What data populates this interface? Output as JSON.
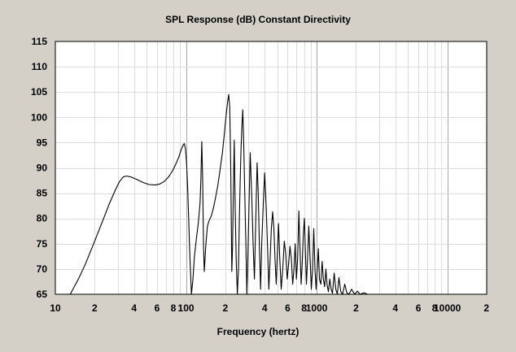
{
  "chart_data": {
    "type": "line",
    "title": "SPL Response (dB)   Constant Directivity",
    "xlabel": "Frequency (hertz)",
    "ylabel": "",
    "xscale": "log",
    "xlim": [
      10,
      20000
    ],
    "ylim": [
      65,
      115
    ],
    "grid": true,
    "x_tick_labels": [
      {
        "value": 10,
        "label": "10"
      },
      {
        "value": 20,
        "label": "2"
      },
      {
        "value": 40,
        "label": "4"
      },
      {
        "value": 60,
        "label": "6"
      },
      {
        "value": 80,
        "label": "8"
      },
      {
        "value": 100,
        "label": "100"
      },
      {
        "value": 200,
        "label": "2"
      },
      {
        "value": 400,
        "label": "4"
      },
      {
        "value": 600,
        "label": "6"
      },
      {
        "value": 800,
        "label": "8"
      },
      {
        "value": 1000,
        "label": "1000"
      },
      {
        "value": 2000,
        "label": "2"
      },
      {
        "value": 4000,
        "label": "4"
      },
      {
        "value": 6000,
        "label": "6"
      },
      {
        "value": 8000,
        "label": "8"
      },
      {
        "value": 10000,
        "label": "10000"
      },
      {
        "value": 20000,
        "label": "2"
      }
    ],
    "y_ticks": [
      65,
      70,
      75,
      80,
      85,
      90,
      95,
      100,
      105,
      110,
      115
    ],
    "line_color": "#000000",
    "series": [
      {
        "x": [
          13,
          15,
          17,
          20,
          23,
          26,
          29,
          31,
          33,
          35,
          38,
          42,
          47,
          52,
          58,
          63,
          68,
          73,
          78,
          83,
          88,
          92,
          95,
          97,
          99,
          101,
          103,
          105,
          107,
          110,
          113,
          116,
          120,
          124,
          128,
          130,
          132,
          134,
          136,
          138,
          142,
          146,
          150,
          156,
          162,
          168,
          175,
          182,
          190,
          197,
          203,
          208,
          212,
          216,
          220,
          224,
          227,
          230,
          234,
          238,
          242,
          247,
          252,
          256,
          260,
          264,
          268,
          272,
          276,
          281,
          287,
          292,
          297,
          303,
          310,
          318,
          326,
          334,
          342,
          350,
          357,
          365,
          372,
          380,
          390,
          400,
          410,
          420,
          430,
          440,
          450,
          460,
          470,
          480,
          490,
          500,
          510,
          520,
          535,
          550,
          565,
          580,
          595,
          610,
          625,
          640,
          655,
          670,
          685,
          700,
          715,
          730,
          745,
          760,
          775,
          790,
          805,
          820,
          835,
          850,
          870,
          890,
          910,
          930,
          950,
          970,
          990,
          1010,
          1030,
          1050,
          1075,
          1100,
          1125,
          1150,
          1175,
          1200,
          1230,
          1260,
          1290,
          1320,
          1360,
          1400,
          1440,
          1480,
          1530,
          1580,
          1640,
          1700,
          1770,
          1850,
          1950,
          2050,
          2150,
          2300,
          2450
        ],
        "y": [
          65,
          68,
          71,
          75.5,
          79.5,
          83,
          85.8,
          87.3,
          88.2,
          88.4,
          88.2,
          87.7,
          87.1,
          86.7,
          86.6,
          86.8,
          87.3,
          88.1,
          89.2,
          90.6,
          92.1,
          93.6,
          94.5,
          94.8,
          93.8,
          91,
          86,
          79,
          72.5,
          65,
          68,
          72.5,
          76,
          79,
          83,
          88,
          95.2,
          88,
          75,
          69.5,
          75,
          78.5,
          79.5,
          80.5,
          82,
          84,
          86.5,
          89.5,
          93,
          97,
          100.5,
          103,
          104.5,
          102,
          90,
          69.5,
          74,
          84,
          95.5,
          82,
          72,
          65,
          70,
          80,
          88,
          94,
          98.5,
          101.5,
          96,
          86,
          75,
          65,
          72,
          82,
          93,
          85,
          75,
          68,
          80,
          91,
          85,
          74,
          66,
          75,
          83,
          89,
          83,
          75,
          66,
          72,
          78,
          81.3,
          78,
          72,
          67,
          73,
          79,
          73,
          66,
          70,
          75.5,
          73,
          68,
          71,
          74.5,
          72,
          67,
          70,
          75,
          68,
          72,
          81.5,
          74,
          67,
          71,
          77,
          80,
          73,
          67,
          71.5,
          78.5,
          72,
          66,
          70,
          78,
          70,
          66,
          70,
          74,
          68,
          67,
          71.5,
          68,
          66.5,
          70,
          67,
          65.5,
          68,
          66,
          65.2,
          69.2,
          66,
          65,
          68.3,
          65.5,
          65,
          67,
          65.3,
          65,
          66,
          65,
          65.6,
          65,
          65.3,
          65
        ]
      }
    ]
  }
}
